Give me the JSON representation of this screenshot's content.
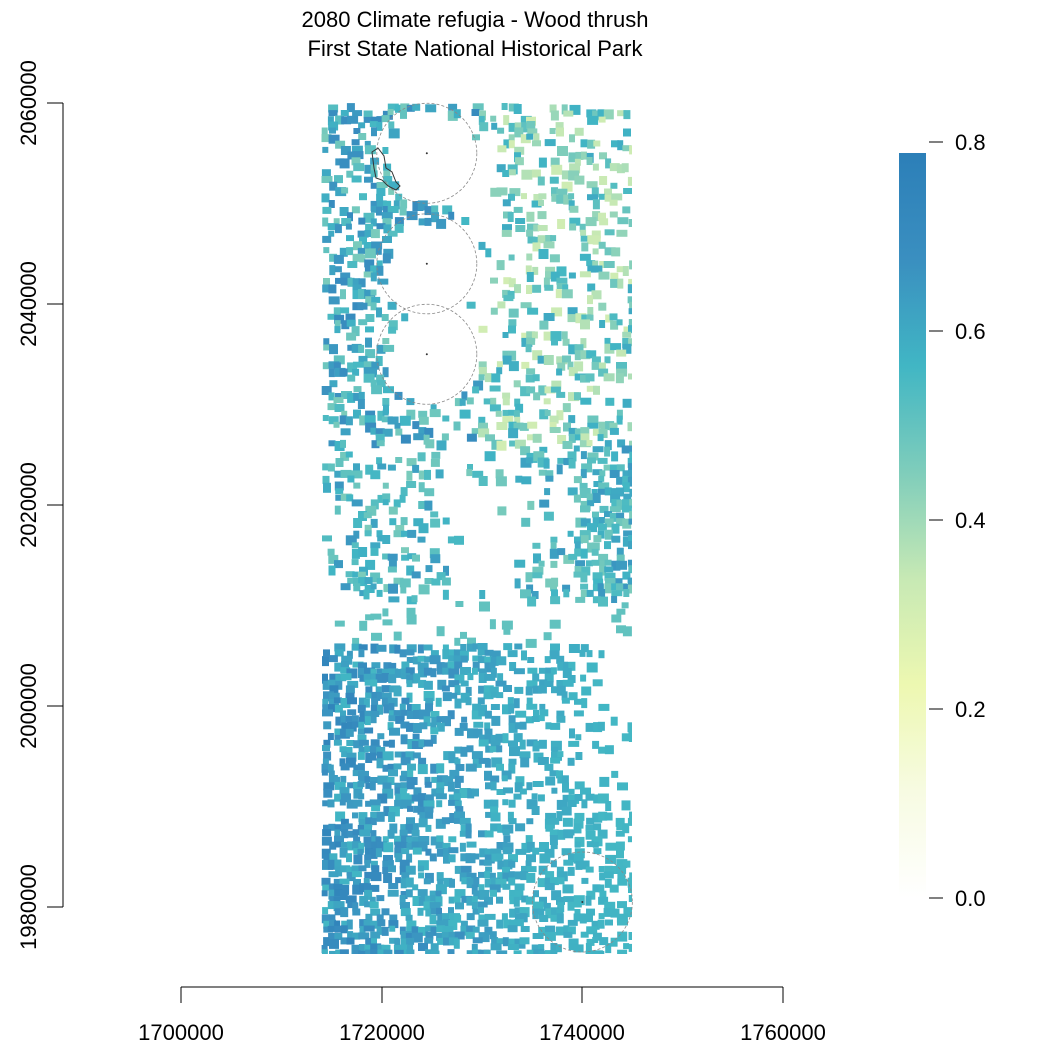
{
  "title": {
    "line1": "2080 Climate refugia - Wood thrush",
    "line2": "First State National Historical Park"
  },
  "map": {
    "type": "raster-map",
    "x_axis": {
      "ticks": [
        "1700000",
        "1720000",
        "1740000",
        "1760000"
      ],
      "range": [
        1700000,
        1760000
      ]
    },
    "y_axis": {
      "ticks": [
        "1980000",
        "2000000",
        "2020000",
        "2040000",
        "2060000"
      ],
      "range": [
        1980000,
        2060000
      ]
    },
    "raster_extent": {
      "x": [
        1714000,
        1745000
      ],
      "y": [
        1975500,
        2060000
      ]
    },
    "buffer_circles": [
      {
        "x": 1724500,
        "y": 2055000
      },
      {
        "x": 1724500,
        "y": 2044000
      },
      {
        "x": 1724500,
        "y": 2035000
      },
      {
        "x": 1740000,
        "y": 1980500
      }
    ],
    "legend": {
      "ticks": [
        "0.0",
        "0.2",
        "0.4",
        "0.6",
        "0.8"
      ],
      "range": [
        0,
        0.78
      ],
      "colors": [
        "#ffffff",
        "#f7fbe2",
        "#edf8b1",
        "#c7e9b4",
        "#7fcdbb",
        "#41b6c4",
        "#3a8fc0",
        "#2c7fb8"
      ]
    }
  }
}
